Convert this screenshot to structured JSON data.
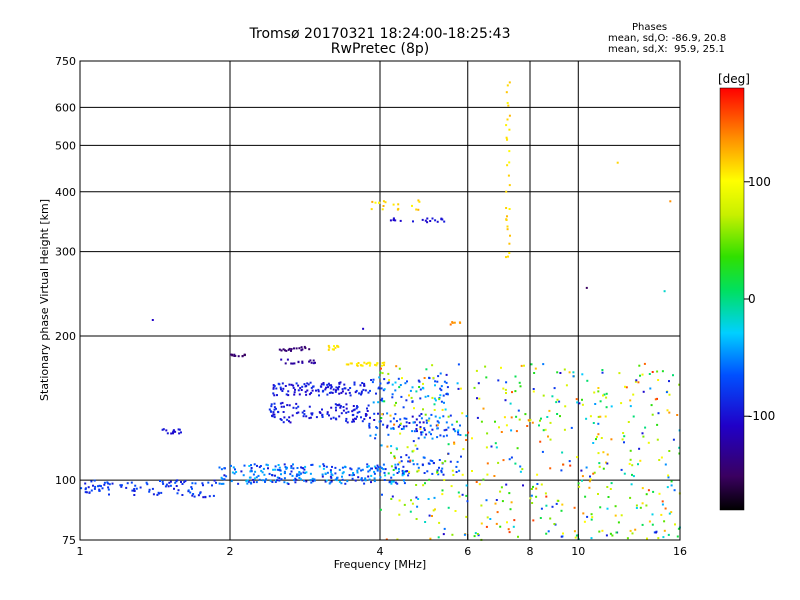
{
  "title": {
    "line1": "Tromsø 20170321 18:24:00-18:25:43",
    "line2": "RwPretec (8p)"
  },
  "stats": {
    "heading": "Phases",
    "line_o": "mean, sd,O: -86.9, 20.8",
    "line_x": "mean, sd,X:  95.9, 25.1"
  },
  "colorbar": {
    "unit": "[deg]",
    "ticks": [
      {
        "value": 100,
        "label": "100"
      },
      {
        "value": 0,
        "label": "0"
      },
      {
        "value": -100,
        "label": "-100"
      }
    ],
    "range": [
      -180,
      180
    ]
  },
  "chart_data": {
    "type": "scatter",
    "title": "Tromsø 20170321 18:24:00-18:25:43",
    "subtitle": "RwPretec (8p)",
    "xlabel": "Frequency [MHz]",
    "ylabel": "Stationary phase Virtual Height [km]",
    "xscale": "log",
    "yscale": "log",
    "xlim": [
      1,
      16
    ],
    "ylim": [
      75,
      750
    ],
    "x_ticks": [
      {
        "value": 1,
        "label": "1"
      },
      {
        "value": 2,
        "label": "2"
      },
      {
        "value": 4,
        "label": "4"
      },
      {
        "value": 6,
        "label": "6"
      },
      {
        "value": 8,
        "label": "8"
      },
      {
        "value": 10,
        "label": "10"
      },
      {
        "value": 16,
        "label": "16"
      }
    ],
    "y_ticks": [
      {
        "value": 75,
        "label": "75"
      },
      {
        "value": 100,
        "label": "100"
      },
      {
        "value": 200,
        "label": "200"
      },
      {
        "value": 300,
        "label": "300"
      },
      {
        "value": 400,
        "label": "400"
      },
      {
        "value": 500,
        "label": "500"
      },
      {
        "value": 600,
        "label": "600"
      },
      {
        "value": 750,
        "label": "750"
      }
    ],
    "grid": true,
    "color_variable": "Phase [deg]",
    "clusters": [
      {
        "f_min": 1.0,
        "f_max": 1.5,
        "h_min": 93,
        "h_max": 100,
        "phase_min": -110,
        "phase_max": -90,
        "count": 60
      },
      {
        "f_min": 1.5,
        "f_max": 1.9,
        "h_min": 92,
        "h_max": 100,
        "phase_min": -115,
        "phase_max": -85,
        "count": 40
      },
      {
        "f_min": 1.9,
        "f_max": 4.5,
        "h_min": 98,
        "h_max": 108,
        "phase_min": -115,
        "phase_max": -60,
        "count": 260
      },
      {
        "f_min": 4.4,
        "f_max": 5.8,
        "h_min": 102,
        "h_max": 112,
        "phase_min": -110,
        "phase_max": -80,
        "count": 40
      },
      {
        "f_min": 1.45,
        "f_max": 1.6,
        "h_min": 125,
        "h_max": 128,
        "phase_min": -120,
        "phase_max": -110,
        "count": 15
      },
      {
        "f_min": 2.4,
        "f_max": 3.8,
        "h_min": 150,
        "h_max": 160,
        "phase_min": -120,
        "phase_max": -100,
        "count": 110
      },
      {
        "f_min": 2.4,
        "f_max": 3.8,
        "h_min": 132,
        "h_max": 145,
        "phase_min": -120,
        "phase_max": -100,
        "count": 110
      },
      {
        "f_min": 3.8,
        "f_max": 5.8,
        "h_min": 122,
        "h_max": 138,
        "phase_min": -120,
        "phase_max": -70,
        "count": 90
      },
      {
        "f_min": 3.8,
        "f_max": 5.5,
        "h_min": 145,
        "h_max": 165,
        "phase_min": -110,
        "phase_max": -60,
        "count": 60
      },
      {
        "f_min": 2.0,
        "f_max": 2.15,
        "h_min": 181,
        "h_max": 184,
        "phase_min": -150,
        "phase_max": -140,
        "count": 12
      },
      {
        "f_min": 2.5,
        "f_max": 2.9,
        "h_min": 186,
        "h_max": 190,
        "phase_min": -150,
        "phase_max": -140,
        "count": 18
      },
      {
        "f_min": 2.5,
        "f_max": 3.0,
        "h_min": 175,
        "h_max": 179,
        "phase_min": -140,
        "phase_max": -125,
        "count": 16
      },
      {
        "f_min": 3.1,
        "f_max": 3.3,
        "h_min": 187,
        "h_max": 191,
        "phase_min": 100,
        "phase_max": 120,
        "count": 10
      },
      {
        "f_min": 3.4,
        "f_max": 4.1,
        "h_min": 173,
        "h_max": 176,
        "phase_min": 100,
        "phase_max": 120,
        "count": 25
      },
      {
        "f_min": 3.8,
        "f_max": 4.8,
        "h_min": 365,
        "h_max": 385,
        "phase_min": 100,
        "phase_max": 130,
        "count": 18
      },
      {
        "f_min": 4.2,
        "f_max": 5.5,
        "h_min": 345,
        "h_max": 352,
        "phase_min": -120,
        "phase_max": -110,
        "count": 20
      },
      {
        "f_min": 5.5,
        "f_max": 5.8,
        "h_min": 211,
        "h_max": 214,
        "phase_min": 130,
        "phase_max": 150,
        "count": 6
      },
      {
        "f_min": 7.15,
        "f_max": 7.3,
        "h_min": 280,
        "h_max": 680,
        "phase_min": 100,
        "phase_max": 125,
        "count": 30
      },
      {
        "f_min": 4.0,
        "f_max": 16.0,
        "h_min": 75,
        "h_max": 175,
        "phase_min": -120,
        "phase_max": 170,
        "count": 520
      }
    ],
    "isolated_points": [
      {
        "f": 1.4,
        "h": 216,
        "phase": -120
      },
      {
        "f": 10.4,
        "h": 252,
        "phase": -150
      },
      {
        "f": 12.0,
        "h": 460,
        "phase": 115
      },
      {
        "f": 15.3,
        "h": 382,
        "phase": 140
      },
      {
        "f": 14.9,
        "h": 248,
        "phase": -50
      },
      {
        "f": 3.7,
        "h": 207,
        "phase": -120
      }
    ]
  }
}
